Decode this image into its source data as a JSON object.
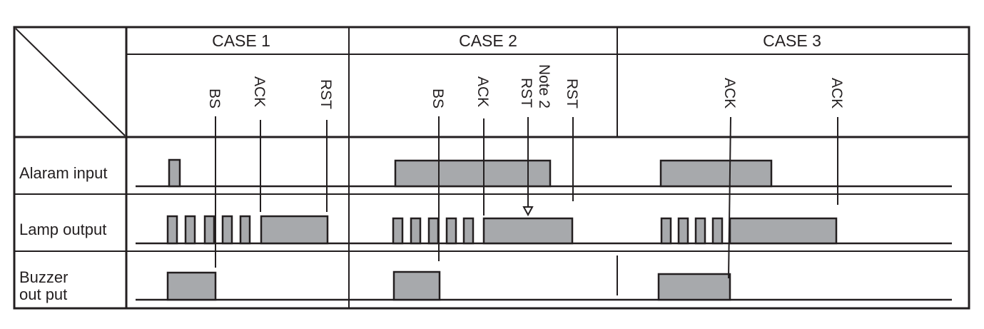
{
  "cases": [
    {
      "label": "CASE 1"
    },
    {
      "label": "CASE 2"
    },
    {
      "label": "CASE 3"
    }
  ],
  "rows": [
    {
      "label_lines": [
        "Alaram input"
      ]
    },
    {
      "label_lines": [
        "Lamp output"
      ]
    },
    {
      "label_lines": [
        "Buzzer",
        "out put"
      ]
    }
  ],
  "markers": [
    {
      "label": "BS"
    },
    {
      "label": "ACK"
    },
    {
      "label": "RST"
    },
    {
      "label": "BS"
    },
    {
      "label": "ACK"
    },
    {
      "label": "RST",
      "note": "Note 2"
    },
    {
      "label": "RST"
    },
    {
      "label": "ACK"
    },
    {
      "label": "ACK"
    }
  ],
  "colors": {
    "line": "#231f20",
    "pulse_fill": "#a7a9ac",
    "background": "#ffffff"
  }
}
